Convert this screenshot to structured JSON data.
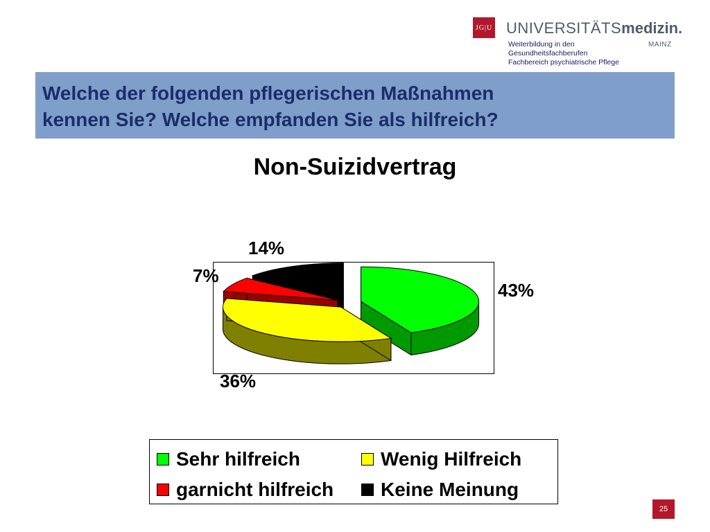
{
  "header": {
    "logo_text": "JG|U",
    "brand_part1": "UNIVERSITÄTS",
    "brand_part2": "medizin.",
    "brand_city": "MAINZ",
    "subline": [
      "Weiterbildung in den",
      "Gesundheitsfachberufen",
      "Fachbereich psychiatrische Pflege"
    ]
  },
  "title_lines": [
    "Welche der folgenden pflegerischen Maßnahmen",
    "kennen Sie? Welche empfanden Sie als hilfreich?"
  ],
  "colors": {
    "title_bar": "#7f9ec9",
    "title_text": "#1a2d6b",
    "accent_red": "#b2182b"
  },
  "chart_data": {
    "type": "pie",
    "title": "Non-Suizidvertrag",
    "three_d": true,
    "legend_placement": "bottom",
    "series": [
      {
        "name": "Sehr hilfreich",
        "value": 43,
        "label": "43%",
        "color": "#00ff00",
        "side_color": "#009900"
      },
      {
        "name": "Wenig Hilfreich",
        "value": 36,
        "label": "36%",
        "color": "#ffff00",
        "side_color": "#808000"
      },
      {
        "name": "garnicht hilfreich",
        "value": 7,
        "label": "7%",
        "color": "#ff0000",
        "side_color": "#990000"
      },
      {
        "name": "Keine Meinung",
        "value": 14,
        "label": "14%",
        "color": "#000000",
        "side_color": "#000000"
      }
    ]
  },
  "page_number": "25"
}
